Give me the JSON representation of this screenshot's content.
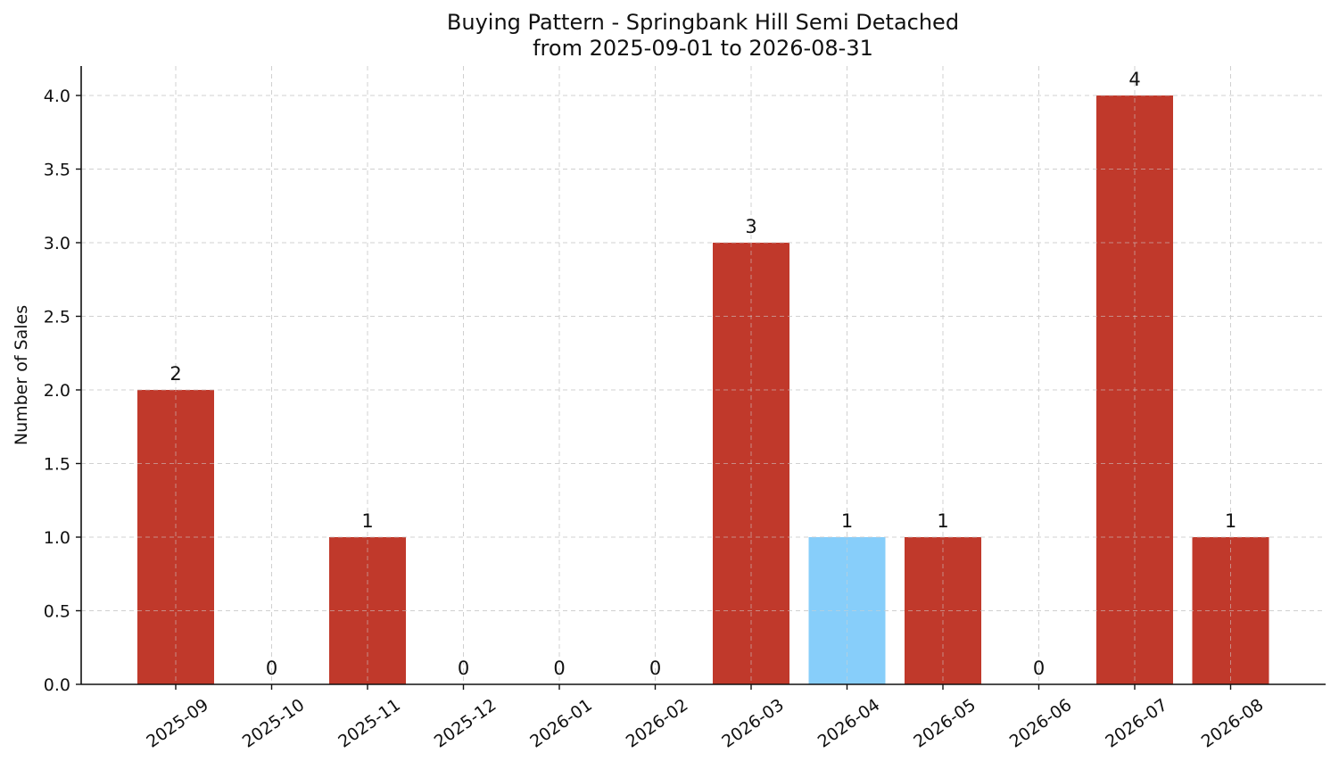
{
  "chart_data": {
    "type": "bar",
    "title": "Buying Pattern - Springbank Hill Semi Detached",
    "subtitle": "from 2025-09-01 to 2026-08-31",
    "xlabel": "",
    "ylabel": "Number of Sales",
    "categories": [
      "2025-09",
      "2025-10",
      "2025-11",
      "2025-12",
      "2026-01",
      "2026-02",
      "2026-03",
      "2026-04",
      "2026-05",
      "2026-06",
      "2026-07",
      "2026-08"
    ],
    "values": [
      2,
      0,
      1,
      0,
      0,
      0,
      3,
      1,
      1,
      0,
      4,
      1
    ],
    "data_labels": [
      "2",
      "0",
      "1",
      "0",
      "0",
      "0",
      "3",
      "1",
      "1",
      "0",
      "4",
      "1"
    ],
    "bar_colors": [
      "#c0392b",
      "#c0392b",
      "#c0392b",
      "#c0392b",
      "#c0392b",
      "#c0392b",
      "#c0392b",
      "#87cefa",
      "#c0392b",
      "#c0392b",
      "#c0392b",
      "#c0392b"
    ],
    "ylim": [
      0,
      4.2
    ],
    "yticks": [
      0.0,
      0.5,
      1.0,
      1.5,
      2.0,
      2.5,
      3.0,
      3.5,
      4.0
    ],
    "ytick_labels": [
      "0.0",
      "0.5",
      "1.0",
      "1.5",
      "2.0",
      "2.5",
      "3.0",
      "3.5",
      "4.0"
    ],
    "grid": true,
    "legend": "none"
  }
}
